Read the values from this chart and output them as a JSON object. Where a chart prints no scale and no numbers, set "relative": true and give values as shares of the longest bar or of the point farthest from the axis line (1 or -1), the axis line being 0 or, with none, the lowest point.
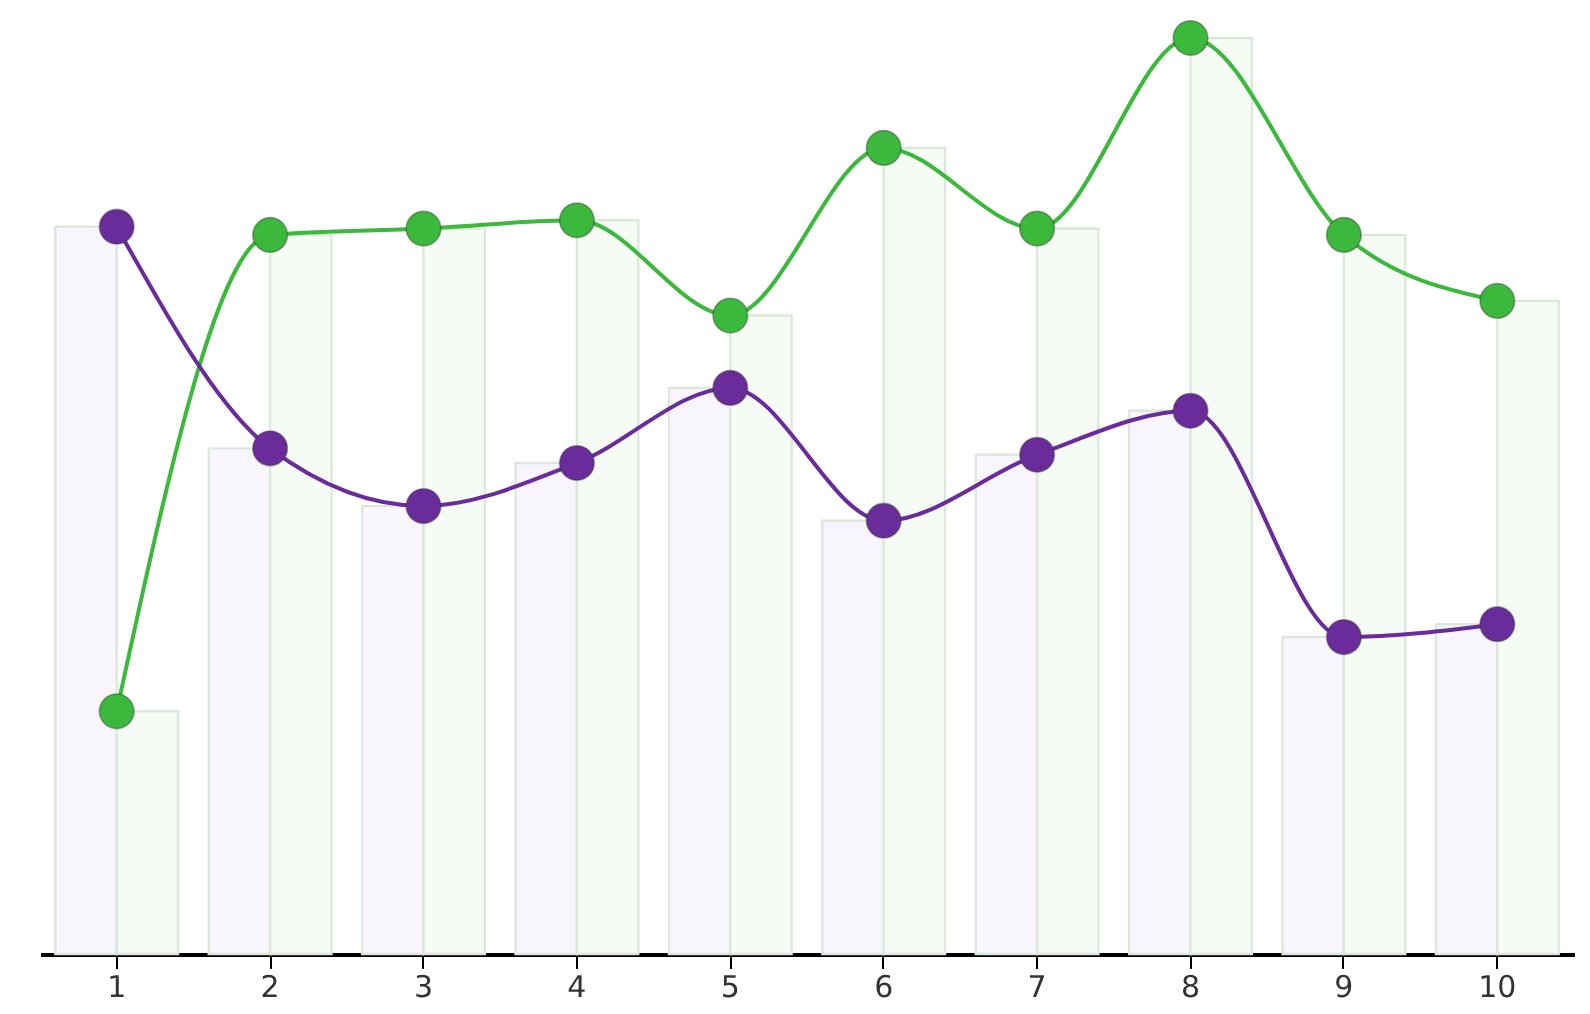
{
  "chart_data": {
    "type": "line",
    "relative": true,
    "categories": [
      "1",
      "2",
      "3",
      "4",
      "5",
      "6",
      "7",
      "8",
      "9",
      "10"
    ],
    "marker": "circle",
    "line_style": "solid",
    "grid": false,
    "legend": false,
    "series": [
      {
        "type": "bar",
        "color": "#f8f6fc",
        "values": [
          0.794,
          0.552,
          0.489,
          0.536,
          0.618,
          0.473,
          0.545,
          0.593,
          0.346,
          0.36
        ]
      },
      {
        "type": "bar",
        "color": "#f6fbf6",
        "values": [
          0.265,
          0.785,
          0.792,
          0.801,
          0.697,
          0.88,
          0.792,
          1.0,
          0.785,
          0.713
        ]
      },
      {
        "color": "#3cb83c",
        "values": [
          0.265,
          0.785,
          0.792,
          0.801,
          0.697,
          0.88,
          0.792,
          1.0,
          0.785,
          0.713
        ]
      },
      {
        "color": "#6a2c9a",
        "values": [
          0.794,
          0.552,
          0.489,
          0.536,
          0.618,
          0.473,
          0.545,
          0.593,
          0.346,
          0.36
        ]
      }
    ]
  }
}
